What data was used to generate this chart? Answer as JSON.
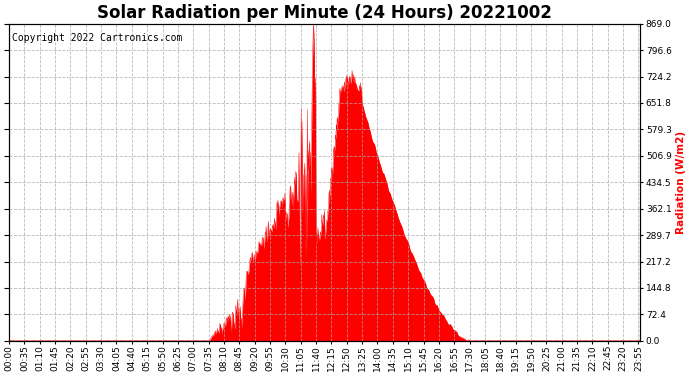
{
  "title": "Solar Radiation per Minute (24 Hours) 20221002",
  "copyright_text": "Copyright 2022 Cartronics.com",
  "ylabel": "Radiation (W/m2)",
  "ylabel_color": "#ff0000",
  "background_color": "#ffffff",
  "plot_bg_color": "#ffffff",
  "fill_color": "#ff0000",
  "line_color": "#ff0000",
  "grid_color": "#aaaaaa",
  "dashed_line_color": "#ff0000",
  "ylim": [
    0.0,
    869.0
  ],
  "yticks": [
    0.0,
    72.4,
    144.8,
    217.2,
    289.7,
    362.1,
    434.5,
    506.9,
    579.3,
    651.8,
    724.2,
    796.6,
    869.0
  ],
  "title_fontsize": 12,
  "axis_fontsize": 7.5,
  "tick_fontsize": 6.5,
  "copyright_fontsize": 7
}
